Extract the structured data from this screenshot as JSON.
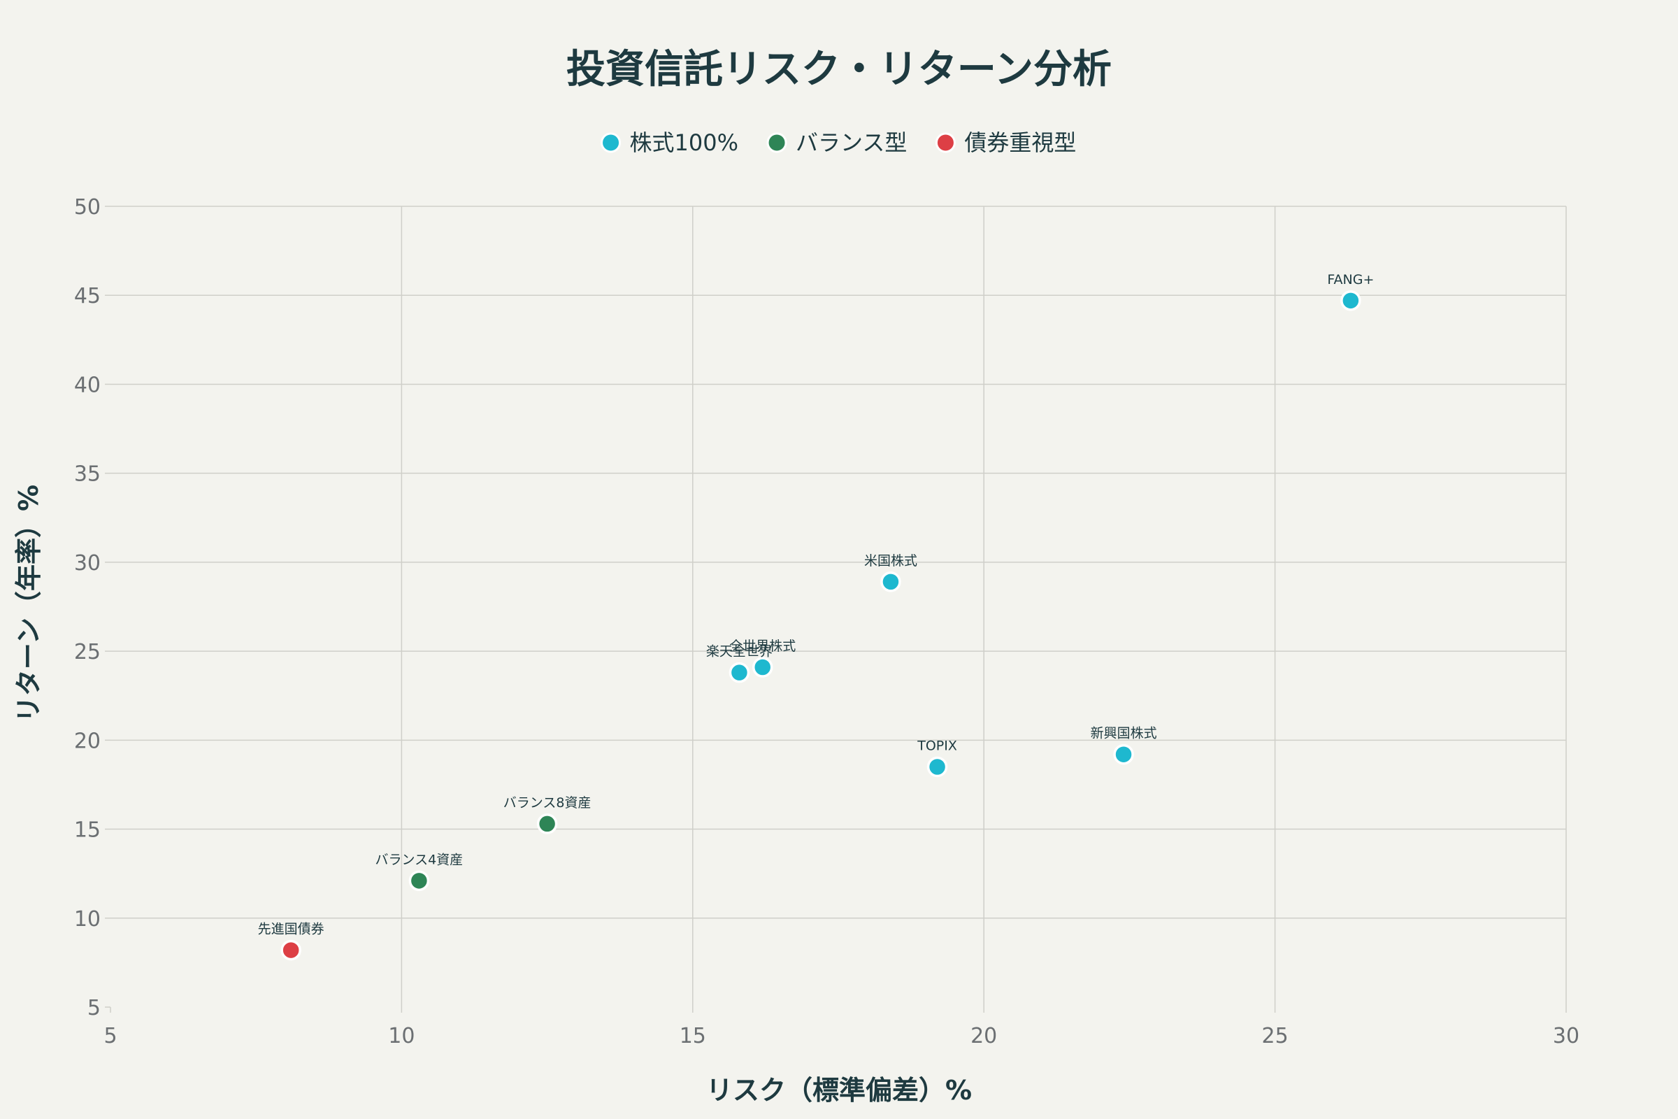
{
  "chart_data": {
    "type": "scatter",
    "title": "投資信託リスク・リターン分析",
    "xlabel": "リスク（標準偏差）%",
    "ylabel": "リターン（年率）%",
    "xlim": [
      5,
      30
    ],
    "ylim": [
      5,
      50
    ],
    "xticks": [
      5,
      10,
      15,
      20,
      25,
      30
    ],
    "yticks": [
      5,
      10,
      15,
      20,
      25,
      30,
      35,
      40,
      45,
      50
    ],
    "grid": true,
    "legend_position": "top-center",
    "series": [
      {
        "name": "株式100%",
        "color": "#1eb8cf",
        "points": [
          {
            "label": "FANG+",
            "x": 26.3,
            "y": 44.7
          },
          {
            "label": "米国株式",
            "x": 18.4,
            "y": 28.9
          },
          {
            "label": "全世界株式",
            "x": 16.2,
            "y": 24.1
          },
          {
            "label": "楽天全世界",
            "x": 15.8,
            "y": 23.8
          },
          {
            "label": "TOPIX",
            "x": 19.2,
            "y": 18.5
          },
          {
            "label": "新興国株式",
            "x": 22.4,
            "y": 19.2
          }
        ]
      },
      {
        "name": "バランス型",
        "color": "#2e8556",
        "points": [
          {
            "label": "バランス8資産",
            "x": 12.5,
            "y": 15.3
          },
          {
            "label": "バランス4資産",
            "x": 10.3,
            "y": 12.1
          }
        ]
      },
      {
        "name": "債券重視型",
        "color": "#dd3f45",
        "points": [
          {
            "label": "先進国債券",
            "x": 8.1,
            "y": 8.2
          }
        ]
      }
    ]
  }
}
